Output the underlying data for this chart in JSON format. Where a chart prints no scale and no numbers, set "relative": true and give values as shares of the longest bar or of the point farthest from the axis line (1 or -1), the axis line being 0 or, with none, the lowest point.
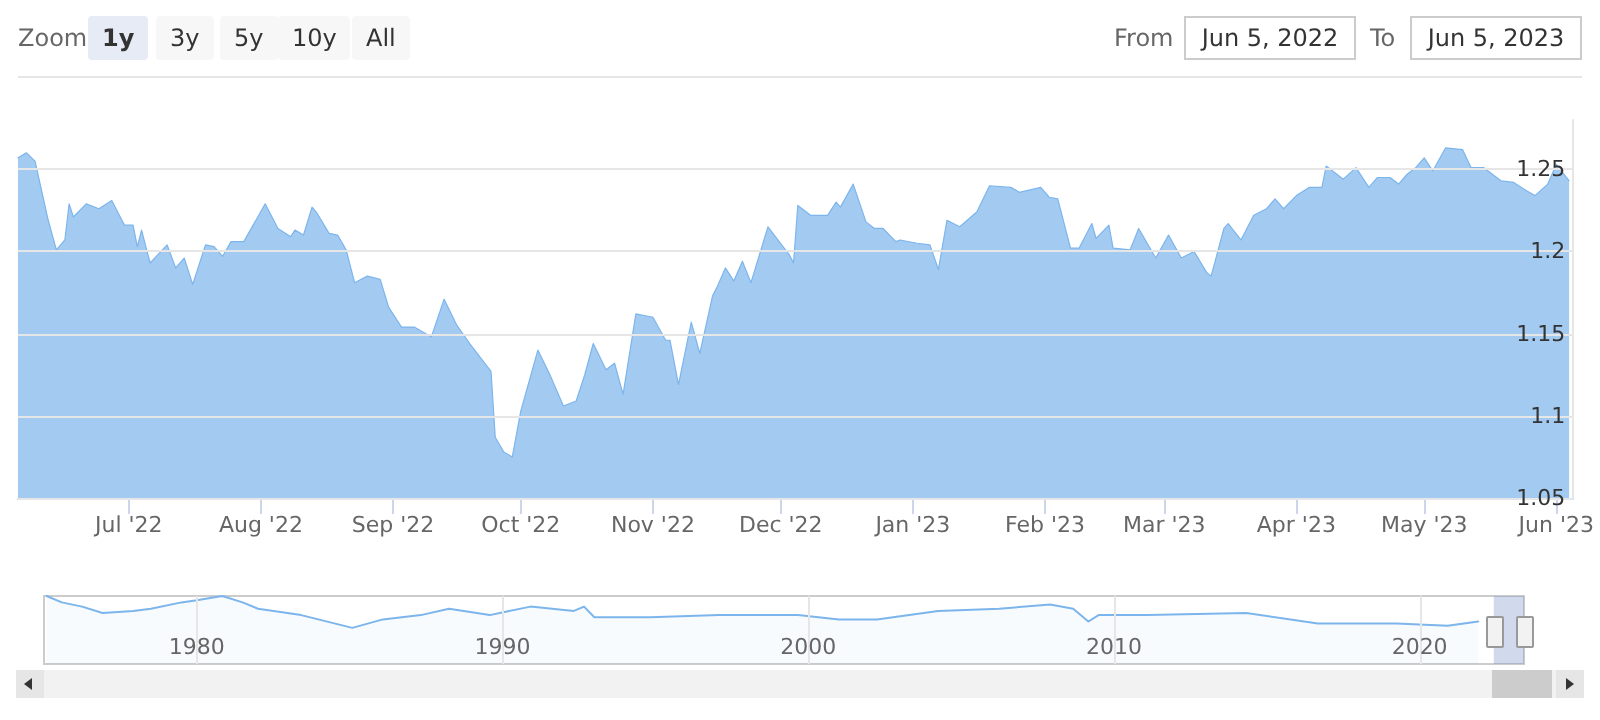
{
  "chart_data": [
    {
      "type": "area",
      "x": [
        "2022-06-05",
        "2022-06-07",
        "2022-06-09",
        "2022-06-12",
        "2022-06-14",
        "2022-06-16",
        "2022-06-17",
        "2022-06-18",
        "2022-06-21",
        "2022-06-24",
        "2022-06-27",
        "2022-06-30",
        "2022-07-02",
        "2022-07-03",
        "2022-07-04",
        "2022-07-06",
        "2022-07-10",
        "2022-07-12",
        "2022-07-14",
        "2022-07-16",
        "2022-07-19",
        "2022-07-21",
        "2022-07-23",
        "2022-07-25",
        "2022-07-28",
        "2022-08-02",
        "2022-08-05",
        "2022-08-08",
        "2022-08-09",
        "2022-08-11",
        "2022-08-13",
        "2022-08-14",
        "2022-08-17",
        "2022-08-19",
        "2022-08-21",
        "2022-08-23",
        "2022-08-26",
        "2022-08-29",
        "2022-08-31",
        "2022-09-03",
        "2022-09-06",
        "2022-09-10",
        "2022-09-13",
        "2022-09-16",
        "2022-09-19",
        "2022-09-24",
        "2022-09-25",
        "2022-09-27",
        "2022-09-29",
        "2022-10-01",
        "2022-10-05",
        "2022-10-08",
        "2022-10-11",
        "2022-10-14",
        "2022-10-16",
        "2022-10-18",
        "2022-10-21",
        "2022-10-23",
        "2022-10-25",
        "2022-10-28",
        "2022-11-01",
        "2022-11-04",
        "2022-11-05",
        "2022-11-07",
        "2022-11-10",
        "2022-11-12",
        "2022-11-15",
        "2022-11-16",
        "2022-11-18",
        "2022-11-20",
        "2022-11-22",
        "2022-11-24",
        "2022-11-28",
        "2022-12-03",
        "2022-12-04",
        "2022-12-05",
        "2022-12-08",
        "2022-12-12",
        "2022-12-14",
        "2022-12-15",
        "2022-12-18",
        "2022-12-21",
        "2022-12-23",
        "2022-12-25",
        "2022-12-28",
        "2022-12-29",
        "2023-01-02",
        "2023-01-05",
        "2023-01-07",
        "2023-01-09",
        "2023-01-12",
        "2023-01-16",
        "2023-01-19",
        "2023-01-24",
        "2023-01-26",
        "2023-01-31",
        "2023-02-02",
        "2023-02-04",
        "2023-02-07",
        "2023-02-09",
        "2023-02-12",
        "2023-02-13",
        "2023-02-16",
        "2023-02-17",
        "2023-02-21",
        "2023-02-23",
        "2023-02-27",
        "2023-03-02",
        "2023-03-05",
        "2023-03-08",
        "2023-03-11",
        "2023-03-12",
        "2023-03-15",
        "2023-03-16",
        "2023-03-19",
        "2023-03-22",
        "2023-03-25",
        "2023-03-27",
        "2023-03-29",
        "2023-04-01",
        "2023-04-04",
        "2023-04-07",
        "2023-04-08",
        "2023-04-12",
        "2023-04-15",
        "2023-04-18",
        "2023-04-20",
        "2023-04-23",
        "2023-04-25",
        "2023-04-27",
        "2023-04-29",
        "2023-05-01",
        "2023-05-03",
        "2023-05-06",
        "2023-05-10",
        "2023-05-12",
        "2023-05-15",
        "2023-05-19",
        "2023-05-22",
        "2023-05-25",
        "2023-05-27",
        "2023-05-30",
        "2023-06-01",
        "2023-06-04"
      ],
      "series": [
        {
          "color": "#7cb5ec",
          "values": [
            1.257,
            1.26,
            1.255,
            1.22,
            1.201,
            1.207,
            1.229,
            1.221,
            1.229,
            1.226,
            1.231,
            1.216,
            1.216,
            1.203,
            1.213,
            1.193,
            1.204,
            1.19,
            1.196,
            1.18,
            1.204,
            1.203,
            1.197,
            1.206,
            1.206,
            1.229,
            1.214,
            1.209,
            1.213,
            1.21,
            1.227,
            1.224,
            1.211,
            1.21,
            1.201,
            1.181,
            1.185,
            1.183,
            1.166,
            1.154,
            1.154,
            1.148,
            1.171,
            1.155,
            1.144,
            1.127,
            1.087,
            1.078,
            1.075,
            1.103,
            1.14,
            1.124,
            1.106,
            1.109,
            1.125,
            1.144,
            1.128,
            1.132,
            1.113,
            1.162,
            1.16,
            1.146,
            1.146,
            1.119,
            1.157,
            1.138,
            1.173,
            1.178,
            1.19,
            1.182,
            1.194,
            1.181,
            1.215,
            1.198,
            1.193,
            1.228,
            1.222,
            1.222,
            1.23,
            1.227,
            1.241,
            1.218,
            1.214,
            1.214,
            1.206,
            1.207,
            1.205,
            1.204,
            1.189,
            1.219,
            1.215,
            1.224,
            1.24,
            1.239,
            1.236,
            1.239,
            1.233,
            1.232,
            1.202,
            1.202,
            1.217,
            1.208,
            1.216,
            1.202,
            1.201,
            1.214,
            1.196,
            1.21,
            1.196,
            1.2,
            1.187,
            1.185,
            1.214,
            1.217,
            1.207,
            1.222,
            1.226,
            1.232,
            1.226,
            1.234,
            1.239,
            1.239,
            1.252,
            1.244,
            1.251,
            1.239,
            1.245,
            1.245,
            1.241,
            1.247,
            1.251,
            1.257,
            1.249,
            1.263,
            1.262,
            1.251,
            1.251,
            1.243,
            1.242,
            1.237,
            1.234,
            1.241,
            1.253,
            1.243
          ]
        }
      ],
      "xlim": [
        "2022-06-05",
        "2023-06-05"
      ],
      "xticks": [
        {
          "value": "2022-07-01",
          "label": "Jul '22"
        },
        {
          "value": "2022-08-01",
          "label": "Aug '22"
        },
        {
          "value": "2022-09-01",
          "label": "Sep '22"
        },
        {
          "value": "2022-10-01",
          "label": "Oct '22"
        },
        {
          "value": "2022-11-01",
          "label": "Nov '22"
        },
        {
          "value": "2022-12-01",
          "label": "Dec '22"
        },
        {
          "value": "2023-01-01",
          "label": "Jan '23"
        },
        {
          "value": "2023-02-01",
          "label": "Feb '23"
        },
        {
          "value": "2023-03-01",
          "label": "Mar '23"
        },
        {
          "value": "2023-04-01",
          "label": "Apr '23"
        },
        {
          "value": "2023-05-01",
          "label": "May '23"
        },
        {
          "value": "2023-06-01",
          "label": "Jun '23"
        }
      ],
      "ylim": [
        1.05,
        1.28
      ],
      "yticks": [
        1.05,
        1.1,
        1.15,
        1.2,
        1.25
      ],
      "grid": "y",
      "annotations": [
        "Zoom",
        "1y",
        "3y",
        "5y",
        "10y",
        "All",
        "From",
        "Jun 5, 2022",
        "To",
        "Jun 5, 2023"
      ]
    },
    {
      "type": "area",
      "relative": true,
      "x": [
        "1975-02",
        "1975-08",
        "1976-04",
        "1976-12",
        "1977-12",
        "1978-07",
        "1979-07",
        "1980-01",
        "1980-11",
        "1981-07",
        "1982-01",
        "1983-06",
        "1985-02",
        "1986-02",
        "1987-05",
        "1988-04",
        "1989-08",
        "1990-12",
        "1992-05",
        "1992-09",
        "1993-01",
        "1994-11",
        "1997-02",
        "1999-09",
        "2001-01",
        "2002-04",
        "2004-04",
        "2006-04",
        "2007-12",
        "2008-09",
        "2009-03",
        "2009-07",
        "2011-02",
        "2014-05",
        "2016-09",
        "2019-04",
        "2020-12",
        "2021-12"
      ],
      "series": [
        {
          "color": "#7cb5ec",
          "values": [
            1.0,
            0.906,
            0.844,
            0.75,
            0.781,
            0.813,
            0.906,
            0.938,
            1.0,
            0.906,
            0.813,
            0.719,
            0.531,
            0.656,
            0.719,
            0.813,
            0.719,
            0.844,
            0.781,
            0.844,
            0.688,
            0.688,
            0.719,
            0.719,
            0.656,
            0.656,
            0.781,
            0.813,
            0.875,
            0.813,
            0.625,
            0.719,
            0.719,
            0.75,
            0.594,
            0.594,
            0.563,
            0.625
          ]
        }
      ],
      "xlim": [
        "1975-01",
        "2023-06"
      ],
      "xticks": [
        {
          "value": "1980",
          "label": "1980"
        },
        {
          "value": "1990",
          "label": "1990"
        },
        {
          "value": "2000",
          "label": "2000"
        },
        {
          "value": "2010",
          "label": "2010"
        },
        {
          "value": "2020",
          "label": "2020"
        }
      ],
      "grid": "x",
      "bands": [
        {
          "axis": "x",
          "from": "2022-06-05",
          "to": "2023-06-05",
          "color": "#6685c2"
        }
      ]
    }
  ]
}
